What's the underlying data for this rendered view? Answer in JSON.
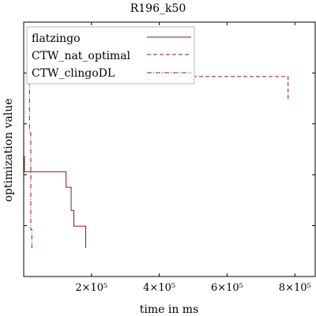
{
  "chart_data": {
    "type": "line",
    "title": "R196_k50",
    "xlabel": "time in ms",
    "ylabel": "optimization value",
    "xlim": [
      0,
      860000
    ],
    "ylim": [
      0,
      100
    ],
    "x_ticks": [
      {
        "value": 200000,
        "label": "2×10⁵"
      },
      {
        "value": 400000,
        "label": "4×10⁵"
      },
      {
        "value": 600000,
        "label": "6×10⁵"
      },
      {
        "value": 800000,
        "label": "8×10⁵"
      }
    ],
    "y_ticks": [
      20,
      40,
      60,
      80
    ],
    "legend": {
      "placement": "top-left",
      "entries": [
        "flatzingo",
        "CTW_nat_optimal",
        "CTW_clingoDL"
      ]
    },
    "series": [
      {
        "name": "flatzingo",
        "color": "#8b1a1a",
        "dash": "solid",
        "points": [
          [
            2000,
            47.4
          ],
          [
            2000,
            41.2
          ],
          [
            125000,
            41.2
          ],
          [
            125000,
            35.1
          ],
          [
            140000,
            35.1
          ],
          [
            140000,
            26.0
          ],
          [
            148000,
            26.0
          ],
          [
            148000,
            19.8
          ],
          [
            183000,
            19.8
          ],
          [
            183000,
            11.2
          ]
        ]
      },
      {
        "name": "CTW_nat_optimal",
        "color": "#8b1a1a",
        "dash": "dashed",
        "points": [
          [
            14000,
            78.6
          ],
          [
            780000,
            78.6
          ],
          [
            780000,
            69.6
          ]
        ]
      },
      {
        "name": "CTW_clingoDL",
        "color": "#8b1a1a",
        "dash": "dashdot",
        "points": [
          [
            17000,
            94.0
          ],
          [
            17000,
            56.5
          ],
          [
            21000,
            56.5
          ],
          [
            21000,
            18.4
          ],
          [
            24000,
            18.4
          ],
          [
            24000,
            11.2
          ]
        ]
      }
    ]
  }
}
